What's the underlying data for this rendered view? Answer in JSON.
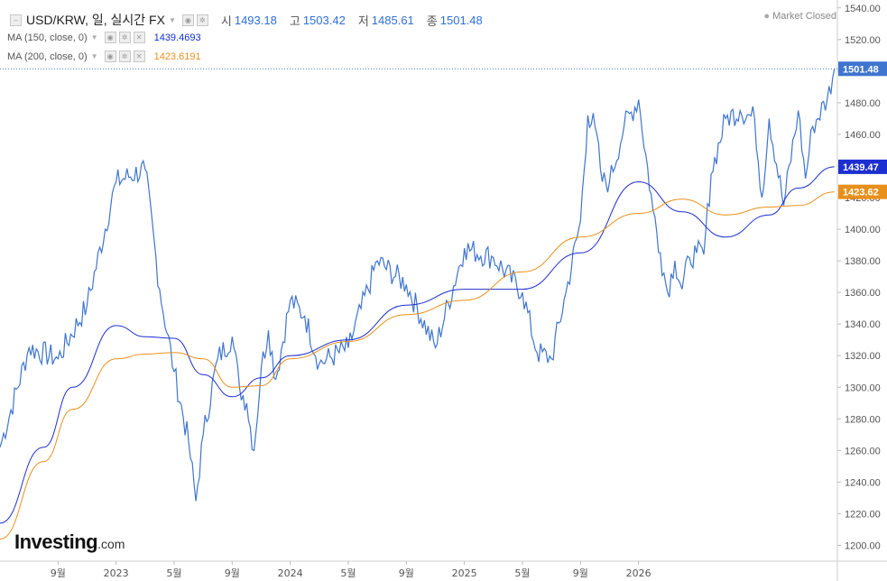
{
  "header": {
    "title": "USD/KRW, 일, 실시간 FX",
    "open_label": "시",
    "open_value": "1493.18",
    "high_label": "고",
    "high_value": "1503.42",
    "low_label": "저",
    "low_value": "1485.61",
    "close_label": "종",
    "close_value": "1501.48",
    "market_status": "Market Closed"
  },
  "indicators": [
    {
      "label": "MA (150, close, 0)",
      "value": "1439.4693",
      "color": "#0f2fd6"
    },
    {
      "label": "MA (200, close, 0)",
      "value": "1423.6191",
      "color": "#e8901c"
    }
  ],
  "logo": {
    "brand": "Investing",
    "suffix": ".com"
  },
  "chart_data": {
    "type": "line",
    "series": [
      {
        "name": "USD/KRW",
        "color": "#3f75cf",
        "x": [
          0.0,
          2.0,
          4.0,
          6.0,
          8.0,
          10.0,
          11.0,
          12.0,
          13.0,
          13.5,
          14.0,
          15.0,
          16.0,
          16.5,
          17.0,
          17.5,
          18.0,
          18.5,
          19.0,
          20.0,
          21.0,
          22.0,
          24.0,
          26.0,
          28.0,
          30.0,
          32.0,
          34.0,
          36.0,
          37.0,
          38.0,
          39.0,
          40.0,
          40.5,
          41.0,
          41.5,
          42.0,
          43.0,
          44.0,
          45.0,
          45.5,
          46.0,
          46.5,
          47.0,
          47.5,
          48.0,
          48.5,
          49.0,
          50.0,
          51.0,
          52.0,
          52.5,
          53.0,
          54.0,
          55.0,
          55.5,
          56.0,
          57.0,
          57.5
        ],
        "values": [
          1262,
          1325,
          1318,
          1352,
          1430,
          1438,
          1362,
          1310,
          1265,
          1228,
          1270,
          1318,
          1332,
          1300,
          1290,
          1260,
          1312,
          1336,
          1305,
          1355,
          1345,
          1315,
          1325,
          1380,
          1365,
          1325,
          1388,
          1382,
          1360,
          1322,
          1318,
          1360,
          1405,
          1472,
          1465,
          1430,
          1430,
          1465,
          1482,
          1412,
          1385,
          1360,
          1380,
          1362,
          1382,
          1385,
          1384,
          1435,
          1470,
          1475,
          1470,
          1420,
          1470,
          1415,
          1475,
          1432,
          1465,
          1482,
          1501.48
        ]
      },
      {
        "name": "MA (150, close, 0)",
        "color": "#1d2fd0",
        "x": [
          0,
          3,
          5,
          8,
          10,
          12,
          14,
          16,
          18,
          20,
          24,
          28,
          32,
          36,
          40,
          44,
          47,
          50,
          53,
          55,
          57.5
        ],
        "values": [
          1214,
          1262,
          1300,
          1339,
          1332,
          1331,
          1308,
          1294,
          1306,
          1320,
          1330,
          1352,
          1362,
          1362,
          1385,
          1430,
          1411,
          1395,
          1409,
          1426,
          1439.47
        ]
      },
      {
        "name": "MA (200, close, 0)",
        "color": "#e8901c",
        "x": [
          0,
          3,
          5,
          8,
          10,
          12,
          14,
          16,
          18,
          20,
          24,
          28,
          32,
          36,
          40,
          44,
          47,
          50,
          53,
          55,
          57.5
        ],
        "values": [
          1204,
          1253,
          1286,
          1318,
          1321,
          1322,
          1318,
          1300,
          1301,
          1318,
          1329,
          1346,
          1355,
          1373,
          1395,
          1410,
          1419,
          1409,
          1414,
          1415,
          1423.62
        ]
      }
    ],
    "ylim": [
      1190,
      1545
    ],
    "yticks": [
      1200,
      1220,
      1240,
      1260,
      1280,
      1300,
      1320,
      1340,
      1360,
      1380,
      1400,
      1420,
      1440,
      1460,
      1480,
      1500,
      1520,
      1540
    ],
    "xticks": [
      {
        "x": 4,
        "label": "9월"
      },
      {
        "x": 8,
        "label": "2023"
      },
      {
        "x": 12,
        "label": "5월"
      },
      {
        "x": 16,
        "label": "9월"
      },
      {
        "x": 20,
        "label": "2024"
      },
      {
        "x": 24,
        "label": "5월"
      },
      {
        "x": 28,
        "label": "9월"
      },
      {
        "x": 32,
        "label": "2025"
      },
      {
        "x": 36,
        "label": "5월"
      },
      {
        "x": 40,
        "label": "9월"
      },
      {
        "x": 44,
        "label": "2026"
      }
    ],
    "xlim": [
      0,
      57.7
    ],
    "price_labels": [
      {
        "value": 1501.48,
        "text": "1501.48",
        "bg": "#3f75cf",
        "fg": "#ffffff"
      },
      {
        "value": 1439.47,
        "text": "1439.47",
        "bg": "#1d2fd0",
        "fg": "#ffffff"
      },
      {
        "value": 1423.62,
        "text": "1423.62",
        "bg": "#e8901c",
        "fg": "#ffffff"
      }
    ],
    "current_price_line": 1501.48
  }
}
